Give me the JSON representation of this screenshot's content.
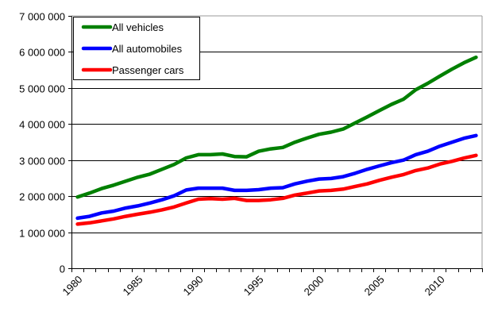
{
  "chart_data": {
    "type": "line",
    "title": "",
    "xlabel": "",
    "ylabel": "",
    "x": [
      1980,
      1981,
      1982,
      1983,
      1984,
      1985,
      1986,
      1987,
      1988,
      1989,
      1990,
      1991,
      1992,
      1993,
      1994,
      1995,
      1996,
      1997,
      1998,
      1999,
      2000,
      2001,
      2002,
      2003,
      2004,
      2005,
      2006,
      2007,
      2008,
      2009,
      2010,
      2011,
      2012,
      2013
    ],
    "xtick_labels": [
      "1980",
      "1985",
      "1990",
      "1995",
      "2000",
      "2005",
      "2010"
    ],
    "ylim": [
      0,
      7000000
    ],
    "ytick_labels": [
      "0",
      "1 000 000",
      "2 000 000",
      "3 000 000",
      "4 000 000",
      "5 000 000",
      "6 000 000",
      "7 000 000"
    ],
    "grid": "horizontal",
    "legend_position": "top-left",
    "series": [
      {
        "name": "All vehicles",
        "color": "#008000",
        "values": [
          1975000,
          2085000,
          2210000,
          2305000,
          2415000,
          2525000,
          2610000,
          2745000,
          2880000,
          3060000,
          3150000,
          3150000,
          3170000,
          3100000,
          3090000,
          3245000,
          3310000,
          3350000,
          3495000,
          3610000,
          3715000,
          3775000,
          3860000,
          4030000,
          4200000,
          4375000,
          4545000,
          4690000,
          4950000,
          5130000,
          5330000,
          5520000,
          5700000,
          5850000
        ]
      },
      {
        "name": "All automobiles",
        "color": "#0000FF",
        "values": [
          1390000,
          1440000,
          1535000,
          1585000,
          1670000,
          1730000,
          1810000,
          1900000,
          2010000,
          2170000,
          2220000,
          2220000,
          2220000,
          2160000,
          2160000,
          2180000,
          2220000,
          2235000,
          2340000,
          2415000,
          2475000,
          2490000,
          2540000,
          2635000,
          2745000,
          2840000,
          2930000,
          3000000,
          3150000,
          3245000,
          3385000,
          3495000,
          3605000,
          3680000
        ]
      },
      {
        "name": "Passenger cars",
        "color": "#FF0000",
        "values": [
          1225000,
          1260000,
          1315000,
          1370000,
          1440000,
          1500000,
          1555000,
          1620000,
          1700000,
          1810000,
          1915000,
          1930000,
          1915000,
          1940000,
          1880000,
          1880000,
          1900000,
          1940000,
          2030000,
          2085000,
          2145000,
          2160000,
          2195000,
          2270000,
          2340000,
          2440000,
          2525000,
          2600000,
          2710000,
          2780000,
          2890000,
          2965000,
          3055000,
          3130000
        ]
      }
    ]
  }
}
